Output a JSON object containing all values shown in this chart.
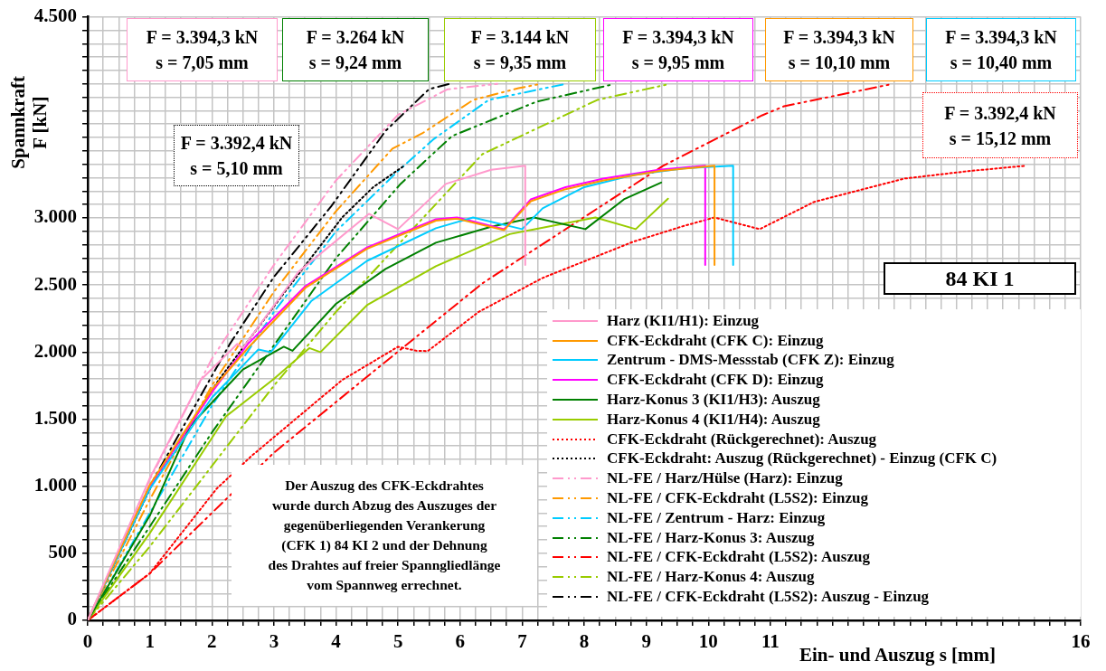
{
  "chart_data": {
    "type": "line",
    "xlabel": "Ein- und Auszug s [mm]",
    "ylabel": "Spannkraft\nF [kN]",
    "xlim": [
      0,
      16
    ],
    "ylim": [
      0,
      4500
    ],
    "grid": true,
    "legend": "bottom right",
    "xticks": [
      0,
      {
        "value": 0.25,
        "label": null
      },
      {
        "value": 0.5,
        "label": null
      },
      {
        "value": 0.75,
        "label": null
      },
      1,
      {
        "value": 1.25,
        "label": null
      },
      {
        "value": 1.5,
        "label": null
      },
      {
        "value": 1.75,
        "label": null
      },
      2,
      {
        "value": 2.25,
        "label": null
      },
      {
        "value": 2.5,
        "label": null
      },
      {
        "value": 2.75,
        "label": null
      },
      3,
      {
        "value": 3.25,
        "label": null
      },
      {
        "value": 3.5,
        "label": null
      },
      {
        "value": 3.75,
        "label": null
      },
      4,
      {
        "value": 4.25,
        "label": null
      },
      {
        "value": 4.5,
        "label": null
      },
      {
        "value": 4.75,
        "label": null
      },
      5,
      {
        "value": 5.25,
        "label": null
      },
      {
        "value": 5.5,
        "label": null
      },
      {
        "value": 5.75,
        "label": null
      },
      6,
      {
        "value": 6.25,
        "label": null
      },
      {
        "value": 6.5,
        "label": null
      },
      {
        "value": 6.75,
        "label": null
      },
      7,
      {
        "value": 7.25,
        "label": null
      },
      {
        "value": 7.5,
        "label": null
      },
      {
        "value": 7.75,
        "label": null
      },
      8,
      {
        "value": 8.25,
        "label": null
      },
      {
        "value": 8.5,
        "label": null
      },
      {
        "value": 8.75,
        "label": null
      },
      9,
      {
        "value": 9.25,
        "label": null
      },
      {
        "value": 9.5,
        "label": null
      },
      {
        "value": 9.75,
        "label": null
      },
      10,
      {
        "value": 10.25,
        "label": null
      },
      {
        "value": 10.5,
        "label": null
      },
      {
        "value": 10.75,
        "label": null
      },
      11,
      {
        "value": 11.25,
        "label": null
      },
      {
        "value": 11.5,
        "label": null
      },
      {
        "value": 11.75,
        "label": null
      },
      {
        "value": 12,
        "label": null
      },
      {
        "value": 12.25,
        "label": null
      },
      {
        "value": 12.5,
        "label": null
      },
      {
        "value": 12.75,
        "label": null
      },
      {
        "value": 13,
        "label": null
      },
      {
        "value": 13.25,
        "label": null
      },
      {
        "value": 13.5,
        "label": null
      },
      {
        "value": 13.75,
        "label": null
      },
      {
        "value": 14,
        "label": null
      },
      {
        "value": 14.25,
        "label": null
      },
      {
        "value": 14.5,
        "label": null
      },
      {
        "value": 14.75,
        "label": null
      },
      {
        "value": 15,
        "label": null
      },
      {
        "value": 15.25,
        "label": null
      },
      {
        "value": 15.5,
        "label": null
      },
      {
        "value": 15.75,
        "label": null
      },
      16
    ],
    "yticks": [
      0,
      {
        "value": 100,
        "label": null
      },
      {
        "value": 200,
        "label": null
      },
      {
        "value": 300,
        "label": null
      },
      {
        "value": 400,
        "label": null
      },
      500,
      {
        "value": 600,
        "label": null
      },
      {
        "value": 700,
        "label": null
      },
      {
        "value": 800,
        "label": null
      },
      {
        "value": 900,
        "label": null
      },
      {
        "value": 1000,
        "label": "1.000"
      },
      {
        "value": 1100,
        "label": null
      },
      {
        "value": 1200,
        "label": null
      },
      {
        "value": 1300,
        "label": null
      },
      {
        "value": 1400,
        "label": null
      },
      {
        "value": 1500,
        "label": "1.500"
      },
      {
        "value": 1600,
        "label": null
      },
      {
        "value": 1700,
        "label": null
      },
      {
        "value": 1800,
        "label": null
      },
      {
        "value": 1900,
        "label": null
      },
      {
        "value": 2000,
        "label": "2.000"
      },
      {
        "value": 2100,
        "label": null
      },
      {
        "value": 2200,
        "label": null
      },
      {
        "value": 2300,
        "label": null
      },
      {
        "value": 2400,
        "label": null
      },
      {
        "value": 2500,
        "label": "2.500"
      },
      {
        "value": 2600,
        "label": null
      },
      {
        "value": 2700,
        "label": null
      },
      {
        "value": 2800,
        "label": null
      },
      {
        "value": 2900,
        "label": null
      },
      {
        "value": 3000,
        "label": "3.000"
      },
      {
        "value": 3100,
        "label": null
      },
      {
        "value": 3200,
        "label": null
      },
      {
        "value": 3300,
        "label": null
      },
      {
        "value": 3400,
        "label": null
      },
      {
        "value": 3500,
        "label": null
      },
      {
        "value": 3600,
        "label": null
      },
      {
        "value": 3700,
        "label": null
      },
      {
        "value": 3800,
        "label": null
      },
      {
        "value": 3900,
        "label": null
      },
      {
        "value": 4000,
        "label": null
      },
      {
        "value": 4100,
        "label": null
      },
      {
        "value": 4200,
        "label": null
      },
      {
        "value": 4300,
        "label": null
      },
      {
        "value": 4400,
        "label": null
      },
      {
        "value": 4500,
        "label": "4.500"
      }
    ],
    "series": [
      {
        "name": "Harz (KI1/H1): Einzug",
        "color": "#ff99cc",
        "line_style": "solid",
        "x": [
          0,
          1,
          1.82,
          2.41,
          2.5,
          3.4,
          4.53,
          5.0,
          5.77,
          6.5,
          7.05,
          7.05
        ],
        "values": [
          0,
          1060,
          1792,
          2061,
          2030,
          2600,
          3031,
          2917,
          3254,
          3360,
          3390,
          2650
        ]
      },
      {
        "name": "CFK-Eckdraht (CFK C): Einzug",
        "color": "#ff9900",
        "line_style": "solid",
        "x": [
          0,
          1,
          2,
          2.6,
          3.51,
          4.5,
          5.61,
          5.95,
          6.71,
          7.14,
          7.7,
          8.31,
          9.2,
          10.1,
          10.1
        ],
        "values": [
          0,
          1010,
          1720,
          2040,
          2480,
          2770,
          2980,
          2995,
          2910,
          3125,
          3215,
          3280,
          3350,
          3390,
          2650
        ]
      },
      {
        "name": "Zentrum - DMS-Messstab (CFK Z): Einzug",
        "color": "#00ccff",
        "line_style": "solid",
        "x": [
          0,
          1,
          2,
          2.75,
          2.95,
          3.6,
          4.5,
          5.61,
          6.21,
          7.0,
          7.33,
          8.0,
          8.79,
          9.6,
          10.4,
          10.4
        ],
        "values": [
          0,
          980,
          1660,
          2020,
          2000,
          2380,
          2680,
          2924,
          3004,
          2917,
          3072,
          3230,
          3321,
          3370,
          3390,
          2650
        ]
      },
      {
        "name": "CFK-Eckdraht (CFK D): Einzug",
        "color": "#ff00ff",
        "line_style": "solid",
        "x": [
          0,
          1,
          2,
          2.58,
          3.51,
          4.5,
          5.61,
          5.95,
          6.71,
          7.14,
          7.7,
          8.31,
          9.2,
          9.95,
          9.95
        ],
        "values": [
          0,
          1000,
          1700,
          2061,
          2493,
          2780,
          2991,
          3004,
          2917,
          3139,
          3230,
          3294,
          3360,
          3390,
          2650
        ]
      },
      {
        "name": "Harz-Konus 3 (KI1/H3): Auszug",
        "color": "#008000",
        "line_style": "solid",
        "x": [
          0,
          1,
          1.65,
          2.5,
          3.16,
          3.3,
          4.0,
          4.8,
          5.61,
          6.5,
          7.19,
          8.02,
          8.64,
          9.24
        ],
        "values": [
          0,
          780,
          1450,
          1870,
          2040,
          2010,
          2360,
          2620,
          2816,
          2935,
          3004,
          2917,
          3139,
          3264
        ]
      },
      {
        "name": "Harz-Konus 4 (KI1/H4): Auszug",
        "color": "#99cc00",
        "line_style": "solid",
        "x": [
          0,
          1,
          2.23,
          3.0,
          3.57,
          3.75,
          4.5,
          5.61,
          6.8,
          8.18,
          8.83,
          9.35
        ],
        "values": [
          0,
          650,
          1522,
          1800,
          2030,
          2000,
          2350,
          2641,
          2880,
          3004,
          2917,
          3144
        ]
      },
      {
        "name": "CFK-Eckdraht (Rückgerechnet): Auszug",
        "color": "#ff0000",
        "line_style": "dotted",
        "x": [
          0,
          1,
          2.08,
          2.64,
          4.1,
          5.0,
          5.3,
          5.48,
          6.3,
          7.33,
          8.79,
          9.6,
          10.1,
          10.83,
          11.7,
          13.16,
          14.2,
          15.12
        ],
        "values": [
          0,
          350,
          983,
          1226,
          1792,
          2040,
          2010,
          2008,
          2300,
          2553,
          2823,
          2940,
          3004,
          2917,
          3119,
          3294,
          3350,
          3390
        ]
      },
      {
        "name": "CFK-Eckdraht: Auszug (Rückgerechnet) - Einzug (CFK C)",
        "color": "#000000",
        "line_style": "dotted",
        "x": [
          0,
          1.06,
          2.11,
          3.16,
          4.1,
          4.6,
          5.1
        ],
        "values": [
          0,
          1037,
          1792,
          2439,
          3004,
          3230,
          3390
        ]
      },
      {
        "name": "NL-FE / Harz/Hülse (Harz): Einzug",
        "color": "#ff99cc",
        "line_style": "dashdot",
        "x": [
          0,
          1,
          2,
          3,
          4,
          5,
          5.8,
          6.6
        ],
        "values": [
          0,
          1050,
          1950,
          2650,
          3280,
          3770,
          3960,
          4000
        ]
      },
      {
        "name": "NL-FE / CFK-Eckdraht (L5S2): Einzug",
        "color": "#ff9900",
        "line_style": "dashdot",
        "x": [
          0,
          1,
          2,
          3,
          4,
          4.91,
          5.39,
          6.21,
          6.94,
          7.3
        ],
        "values": [
          0,
          900,
          1750,
          2450,
          3050,
          3517,
          3631,
          3880,
          3968,
          4000
        ]
      },
      {
        "name": "NL-FE / Zentrum - Harz: Einzug",
        "color": "#00ccff",
        "line_style": "dashdot",
        "x": [
          0,
          1,
          2,
          3,
          4,
          5,
          5.58,
          6.46,
          7.7
        ],
        "values": [
          0,
          800,
          1600,
          2300,
          2900,
          3350,
          3590,
          3880,
          4000
        ]
      },
      {
        "name": "NL-FE / Harz-Konus 3: Auszug",
        "color": "#008000",
        "line_style": "dashdot",
        "x": [
          0,
          1,
          2,
          3,
          4,
          5.04,
          5.87,
          7.23,
          8.45
        ],
        "values": [
          0,
          700,
          1400,
          2050,
          2700,
          3254,
          3611,
          3867,
          3995
        ]
      },
      {
        "name": "NL-FE / CFK-Eckdraht (L5S2): Auszug",
        "color": "#ff0000",
        "line_style": "dashdot",
        "x": [
          0,
          1,
          2,
          3,
          4.56,
          6.36,
          9.27,
          10.87,
          11.22,
          12.92
        ],
        "values": [
          0,
          350,
          800,
          1250,
          1839,
          2513,
          3389,
          3766,
          3833,
          3995
        ]
      },
      {
        "name": "NL-FE / Harz-Konus 4: Auszug",
        "color": "#99cc00",
        "line_style": "dashdot",
        "x": [
          0,
          1,
          2,
          3,
          4,
          5,
          6.36,
          8.21,
          9.33
        ],
        "values": [
          0,
          550,
          1150,
          1750,
          2300,
          2800,
          3476,
          3880,
          3995
        ]
      },
      {
        "name": "NL-FE / CFK-Eckdraht (L5S2): Auszug - Einzug",
        "color": "#000000",
        "line_style": "dashdot",
        "x": [
          0,
          1,
          2.29,
          3,
          3.92,
          4.8,
          5.5,
          5.83
        ],
        "values": [
          0,
          1000,
          2061,
          2560,
          3085,
          3650,
          3961,
          4000
        ]
      }
    ],
    "annotations": [
      "F = 3.394,3 kN\ns = 7,05 mm",
      "F = 3.264 kN\ns = 9,24 mm",
      "F = 3.144 kN\ns = 9,35 mm",
      "F = 3.394,3 kN\ns = 9,95 mm",
      "F = 3.394,3 kN\ns = 10,10 mm",
      "F = 3.394,3 kN\ns = 10,40 mm",
      "F = 3.392,4 kN\ns = 15,12 mm",
      "F = 3.392,4 kN\ns = 5,10 mm",
      "84 KI 1",
      "Der Auszug des CFK-Eckdrahtes\nwurde durch Abzug des Auszuges der\ngegenüberliegenden Verankerung\n(CFK 1) 84 KI 2 und der Dehnung\ndes Drahtes auf freier Spanngliedlänge\nvom Spannweg errechnet."
    ]
  }
}
